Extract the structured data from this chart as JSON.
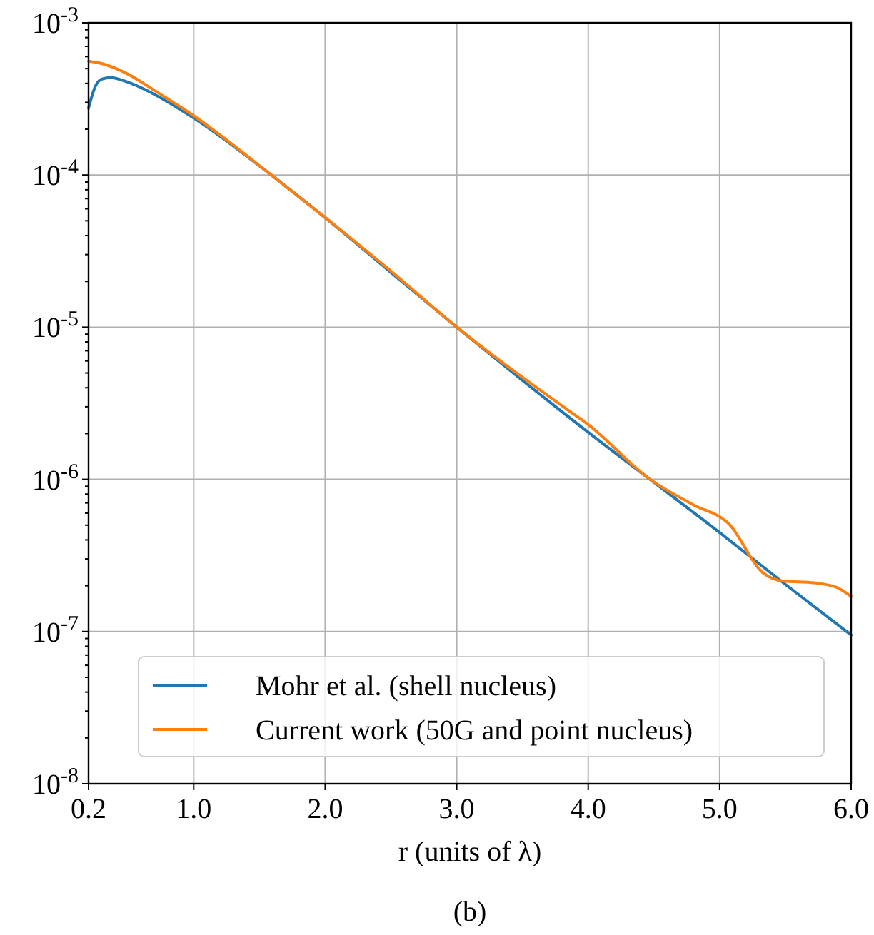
{
  "chart_data": {
    "type": "line",
    "xlabel": "r (units of λ)",
    "annotations": [
      "(b)"
    ],
    "log": "y",
    "grid": true,
    "legend": "bottom",
    "line_style": "solid",
    "marker": "none",
    "xlim": [
      0.2,
      6.0
    ],
    "xticks": [
      0.2,
      {
        "value": 1,
        "label": "1.0"
      },
      {
        "value": 2,
        "label": "2.0"
      },
      {
        "value": 3,
        "label": "3.0"
      },
      {
        "value": 4,
        "label": "4.0"
      },
      {
        "value": 5,
        "label": "5.0"
      },
      {
        "value": 6,
        "label": "6.0"
      }
    ],
    "ylim": [
      1e-08,
      0.001
    ],
    "yticks": [
      {
        "value": 1e-08,
        "label": "10$^{-8}$"
      },
      {
        "value": 1e-07,
        "label": "10$^{-7}$"
      },
      {
        "value": 1e-06,
        "label": "10$^{-6}$"
      },
      {
        "value": 1e-05,
        "label": "10$^{-5}$"
      },
      {
        "value": 0.0001,
        "label": "10$^{-4}$"
      },
      {
        "value": 0.001,
        "label": "10$^{-3}$"
      },
      {
        "value": 2e-08,
        "label": null
      },
      {
        "value": 3e-08,
        "label": null
      },
      {
        "value": 4e-08,
        "label": null
      },
      {
        "value": 5e-08,
        "label": null
      },
      {
        "value": 6e-08,
        "label": null
      },
      {
        "value": 7e-08,
        "label": null
      },
      {
        "value": 8e-08,
        "label": null
      },
      {
        "value": 9e-08,
        "label": null
      },
      {
        "value": 2e-07,
        "label": null
      },
      {
        "value": 3e-07,
        "label": null
      },
      {
        "value": 4e-07,
        "label": null
      },
      {
        "value": 5e-07,
        "label": null
      },
      {
        "value": 6e-07,
        "label": null
      },
      {
        "value": 7e-07,
        "label": null
      },
      {
        "value": 8e-07,
        "label": null
      },
      {
        "value": 9e-07,
        "label": null
      },
      {
        "value": 2e-06,
        "label": null
      },
      {
        "value": 3e-06,
        "label": null
      },
      {
        "value": 4e-06,
        "label": null
      },
      {
        "value": 5e-06,
        "label": null
      },
      {
        "value": 6e-06,
        "label": null
      },
      {
        "value": 7e-06,
        "label": null
      },
      {
        "value": 8e-06,
        "label": null
      },
      {
        "value": 9e-06,
        "label": null
      },
      {
        "value": 2e-05,
        "label": null
      },
      {
        "value": 3e-05,
        "label": null
      },
      {
        "value": 4e-05,
        "label": null
      },
      {
        "value": 5e-05,
        "label": null
      },
      {
        "value": 6e-05,
        "label": null
      },
      {
        "value": 7e-05,
        "label": null
      },
      {
        "value": 8e-05,
        "label": null
      },
      {
        "value": 9e-05,
        "label": null
      },
      {
        "value": 0.0002,
        "label": null
      },
      {
        "value": 0.0003,
        "label": null
      },
      {
        "value": 0.0004,
        "label": null
      },
      {
        "value": 0.0005,
        "label": null
      },
      {
        "value": 0.0006,
        "label": null
      },
      {
        "value": 0.0007,
        "label": null
      },
      {
        "value": 0.0008,
        "label": null
      },
      {
        "value": 0.0009,
        "label": null
      }
    ],
    "series": [
      {
        "name": "Mohr et al. (shell nucleus)",
        "color": "#1f77b4",
        "x": [
          0.2,
          0.25,
          0.3,
          0.37,
          0.5,
          0.7,
          1.0,
          1.59,
          2.0,
          2.5,
          3.0,
          3.5,
          4.0,
          4.47,
          5.0,
          5.5,
          6.0
        ],
        "values": [
          0.000275,
          0.00038,
          0.000427,
          0.000437,
          0.000407,
          0.000339,
          0.000237,
          0.0001,
          5.25e-05,
          2.29e-05,
          1e-05,
          4.47e-06,
          2.04e-06,
          1e-06,
          4.47e-07,
          2.04e-07,
          9.5e-08
        ]
      },
      {
        "name": "Current work (50G and point nucleus)",
        "color": "#ff7f0e",
        "x": [
          0.2,
          0.3,
          0.5,
          0.7,
          1.0,
          1.59,
          2.0,
          2.5,
          3.0,
          3.5,
          3.86,
          4.0,
          4.47,
          4.8,
          5.07,
          5.33,
          5.48,
          5.72,
          5.89,
          6.0
        ],
        "values": [
          0.00056,
          0.00054,
          0.00046,
          0.00036,
          0.000245,
          0.0001,
          5.25e-05,
          2.34e-05,
          1e-05,
          4.68e-06,
          2.8e-06,
          2.29e-06,
          1e-06,
          6.8e-07,
          5.1e-07,
          2.43e-07,
          2.15e-07,
          2.09e-07,
          1.95e-07,
          1.7e-07
        ]
      }
    ]
  }
}
